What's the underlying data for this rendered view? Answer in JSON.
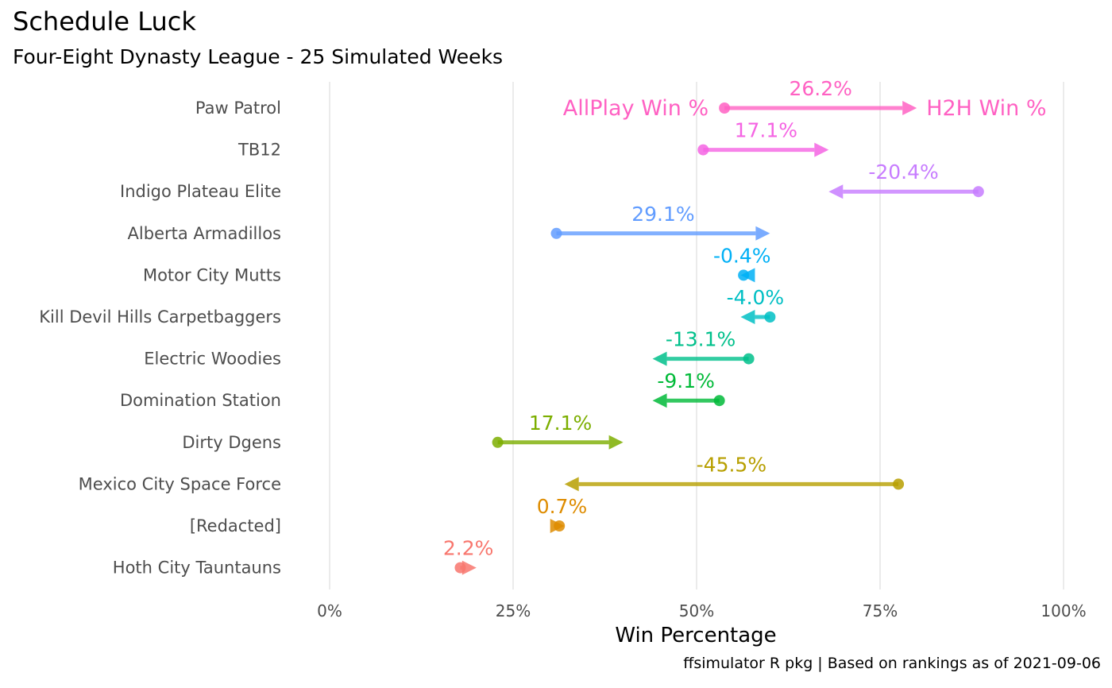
{
  "header": {
    "title": "Schedule Luck",
    "subtitle": "Four-Eight Dynasty League - 25 Simulated Weeks"
  },
  "footer": {
    "caption": "ffsimulator R pkg | Based on rankings as of 2021-09-06"
  },
  "chart_data": {
    "type": "dumbbell-arrow",
    "xlabel": "Win Percentage",
    "ylabel": "",
    "xlim": [
      0,
      100
    ],
    "x_ticks": [
      "0%",
      "25%",
      "50%",
      "75%",
      "100%"
    ],
    "x_tick_values": [
      0,
      25,
      50,
      75,
      100
    ],
    "grid": "vertical major",
    "annotations": {
      "start_label": "AllPlay Win %",
      "end_label": "H2H Win %"
    },
    "series": [
      {
        "team": "Paw Patrol",
        "allplay": 53.8,
        "h2h": 80.0,
        "label": "26.2%",
        "color": "#FF61C3"
      },
      {
        "team": "TB12",
        "allplay": 50.9,
        "h2h": 68.0,
        "label": "17.1%",
        "color": "#F564E3"
      },
      {
        "team": "Indigo Plateau Elite",
        "allplay": 88.4,
        "h2h": 68.0,
        "label": "-20.4%",
        "color": "#C77CFF"
      },
      {
        "team": "Alberta Armadillos",
        "allplay": 30.9,
        "h2h": 60.0,
        "label": "29.1%",
        "color": "#619CFF"
      },
      {
        "team": "Motor City Mutts",
        "allplay": 56.4,
        "h2h": 56.0,
        "label": "-0.4%",
        "color": "#00B0F6"
      },
      {
        "team": "Kill Devil Hills Carpetbaggers",
        "allplay": 60.0,
        "h2h": 56.0,
        "label": "-4.0%",
        "color": "#00BFC4"
      },
      {
        "team": "Electric Woodies",
        "allplay": 57.1,
        "h2h": 44.0,
        "label": "-13.1%",
        "color": "#00C08B"
      },
      {
        "team": "Domination Station",
        "allplay": 53.1,
        "h2h": 44.0,
        "label": "-9.1%",
        "color": "#00BA38"
      },
      {
        "team": "Dirty Dgens",
        "allplay": 22.9,
        "h2h": 40.0,
        "label": "17.1%",
        "color": "#7CAE00"
      },
      {
        "team": "Mexico City Space Force",
        "allplay": 77.5,
        "h2h": 32.0,
        "label": "-45.5%",
        "color": "#B79F00"
      },
      {
        "team": "[Redacted]",
        "allplay": 31.3,
        "h2h": 32.0,
        "label": "0.7%",
        "color": "#DE8C00"
      },
      {
        "team": "Hoth City Tauntauns",
        "allplay": 17.8,
        "h2h": 20.0,
        "label": "2.2%",
        "color": "#F8766D"
      }
    ]
  }
}
